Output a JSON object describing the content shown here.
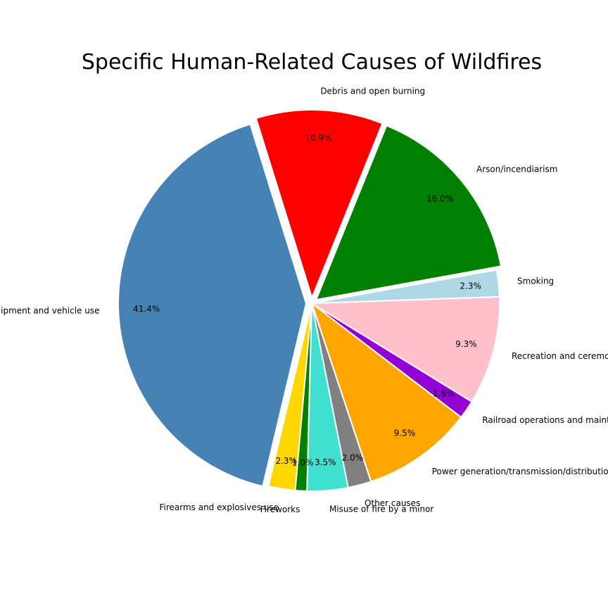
{
  "chart_data": {
    "type": "pie",
    "title": "Specific Human-Related Causes of Wildfires",
    "start_angle_deg": 68,
    "direction": "counterclockwise",
    "slices": [
      {
        "label": "Debris and open burning",
        "value": 10.9,
        "pct_label": "10.9%",
        "color": "#ff0000",
        "explode": 0.03
      },
      {
        "label": "Equipment and vehicle use",
        "value": 41.4,
        "pct_label": "41.4%",
        "color": "#4682b4",
        "explode": 0.03
      },
      {
        "label": "Firearms and explosives use",
        "value": 2.3,
        "pct_label": "2.3%",
        "color": "#ffd700",
        "explode": 0
      },
      {
        "label": "Fireworks",
        "value": 1.0,
        "pct_label": "1.0%",
        "color": "#008000",
        "explode": 0
      },
      {
        "label": "Misuse of fire by a minor",
        "value": 3.5,
        "pct_label": "3.5%",
        "color": "#40e0d0",
        "explode": 0
      },
      {
        "label": "Other causes",
        "value": 2.0,
        "pct_label": "2.0%",
        "color": "#808080",
        "explode": 0
      },
      {
        "label": "Power generation/transmission/distribution",
        "value": 9.5,
        "pct_label": "9.5%",
        "color": "#ffa500",
        "explode": 0
      },
      {
        "label": "Railroad operations and maintenance",
        "value": 1.6,
        "pct_label": "1.6%",
        "color": "#9400d3",
        "explode": 0
      },
      {
        "label": "Recreation and ceremony",
        "value": 9.3,
        "pct_label": "9.3%",
        "color": "#ffc0cb",
        "explode": 0
      },
      {
        "label": "Smoking",
        "value": 2.3,
        "pct_label": "2.3%",
        "color": "#add8e6",
        "explode": 0
      },
      {
        "label": "Arson/incendiarism",
        "value": 16.0,
        "pct_label": "16.0%",
        "color": "#008000",
        "explode": 0.03
      }
    ]
  }
}
